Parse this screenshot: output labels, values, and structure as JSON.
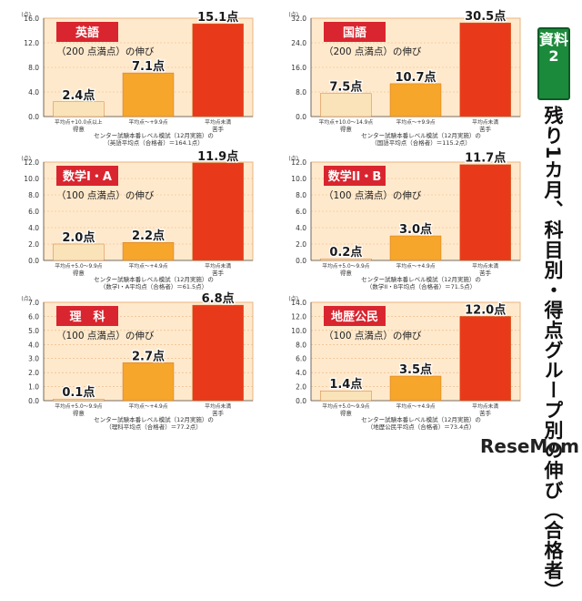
{
  "sidebar": {
    "tag": "資料2",
    "title": "残り1カ月、科目別・得点グループ別の伸び（合格者）"
  },
  "logo": {
    "text": "ReseMom"
  },
  "colors": {
    "bar_low": "#fae3b8",
    "bar_mid": "#f5a62b",
    "bar_high": "#e83a1a",
    "title_bg": "#d9252f",
    "panel_bg": "#ffe9cc"
  },
  "chart_data": [
    {
      "type": "bar",
      "title": "英語",
      "subtitle": "（200 点満点）の伸び",
      "unit_label": "(点)",
      "ylim": [
        0,
        16
      ],
      "yticks": [
        "0.0",
        "4.0",
        "8.0",
        "12.0",
        "16.0"
      ],
      "categories": [
        "平均点+10.0点以上",
        "平均点〜+9.9点",
        "平均点未満"
      ],
      "values": [
        2.4,
        7.1,
        15.1
      ],
      "value_labels": [
        "2.4点",
        "7.1点",
        "15.1点"
      ],
      "group_left": "得意",
      "group_right": "苦手",
      "footnote1": "センター試験本番レベル模試（12月実施）の",
      "footnote2": "（英語平均点（合格者）＝164.1点）"
    },
    {
      "type": "bar",
      "title": "国語",
      "subtitle": "（200 点満点）の伸び",
      "unit_label": "(点)",
      "ylim": [
        0,
        32
      ],
      "yticks": [
        "0.0",
        "8.0",
        "16.0",
        "24.0",
        "32.0"
      ],
      "categories": [
        "平均点+10.0〜14.9点",
        "平均点〜+9.9点",
        "平均点未満"
      ],
      "values": [
        7.5,
        10.7,
        30.5
      ],
      "value_labels": [
        "7.5点",
        "10.7点",
        "30.5点"
      ],
      "group_left": "得意",
      "group_right": "苦手",
      "footnote1": "センター試験本番レベル模試（12月実施）の",
      "footnote2": "（国語平均点（合格者）＝115.2点）"
    },
    {
      "type": "bar",
      "title": "数学I・A",
      "subtitle": "（100 点満点）の伸び",
      "unit_label": "(点)",
      "ylim": [
        0,
        12
      ],
      "yticks": [
        "0.0",
        "2.0",
        "4.0",
        "6.0",
        "8.0",
        "10.0",
        "12.0"
      ],
      "categories": [
        "平均点+5.0〜9.9点",
        "平均点〜+4.9点",
        "平均点未満"
      ],
      "values": [
        2.0,
        2.2,
        11.9
      ],
      "value_labels": [
        "2.0点",
        "2.2点",
        "11.9点"
      ],
      "group_left": "得意",
      "group_right": "苦手",
      "footnote1": "センター試験本番レベル模試（12月実施）の",
      "footnote2": "（数学I・A平均点（合格者）＝61.5点）"
    },
    {
      "type": "bar",
      "title": "数学II・B",
      "subtitle": "（100 点満点）の伸び",
      "unit_label": "(点)",
      "ylim": [
        0,
        12
      ],
      "yticks": [
        "0.0",
        "2.0",
        "4.0",
        "6.0",
        "8.0",
        "10.0",
        "12.0"
      ],
      "categories": [
        "平均点+5.0〜9.9点",
        "平均点〜+4.9点",
        "平均点未満"
      ],
      "values": [
        0.2,
        3.0,
        11.7
      ],
      "value_labels": [
        "0.2点",
        "3.0点",
        "11.7点"
      ],
      "group_left": "得意",
      "group_right": "苦手",
      "footnote1": "センター試験本番レベル模試（12月実施）の",
      "footnote2": "（数学II・B平均点（合格者）＝71.5点）"
    },
    {
      "type": "bar",
      "title": "理　科",
      "subtitle": "（100 点満点）の伸び",
      "unit_label": "(点)",
      "ylim": [
        0,
        7
      ],
      "yticks": [
        "0.0",
        "1.0",
        "2.0",
        "3.0",
        "4.0",
        "5.0",
        "6.0",
        "7.0"
      ],
      "categories": [
        "平均点+5.0〜9.9点",
        "平均点〜+4.9点",
        "平均点未満"
      ],
      "values": [
        0.1,
        2.7,
        6.8
      ],
      "value_labels": [
        "0.1点",
        "2.7点",
        "6.8点"
      ],
      "group_left": "得意",
      "group_right": "苦手",
      "footnote1": "センター試験本番レベル模試（12月実施）の",
      "footnote2": "（理科平均点（合格者）＝77.2点）"
    },
    {
      "type": "bar",
      "title": "地歴公民",
      "subtitle": "（100 点満点）の伸び",
      "unit_label": "(点)",
      "ylim": [
        0,
        14
      ],
      "yticks": [
        "0.0",
        "2.0",
        "4.0",
        "6.0",
        "8.0",
        "10.0",
        "12.0",
        "14.0"
      ],
      "categories": [
        "平均点+5.0〜9.9点",
        "平均点〜+4.9点",
        "平均点未満"
      ],
      "values": [
        1.4,
        3.5,
        12.0
      ],
      "value_labels": [
        "1.4点",
        "3.5点",
        "12.0点"
      ],
      "group_left": "得意",
      "group_right": "苦手",
      "footnote1": "センター試験本番レベル模試（12月実施）の",
      "footnote2": "（地歴公民平均点（合格者）＝73.4点）"
    }
  ]
}
